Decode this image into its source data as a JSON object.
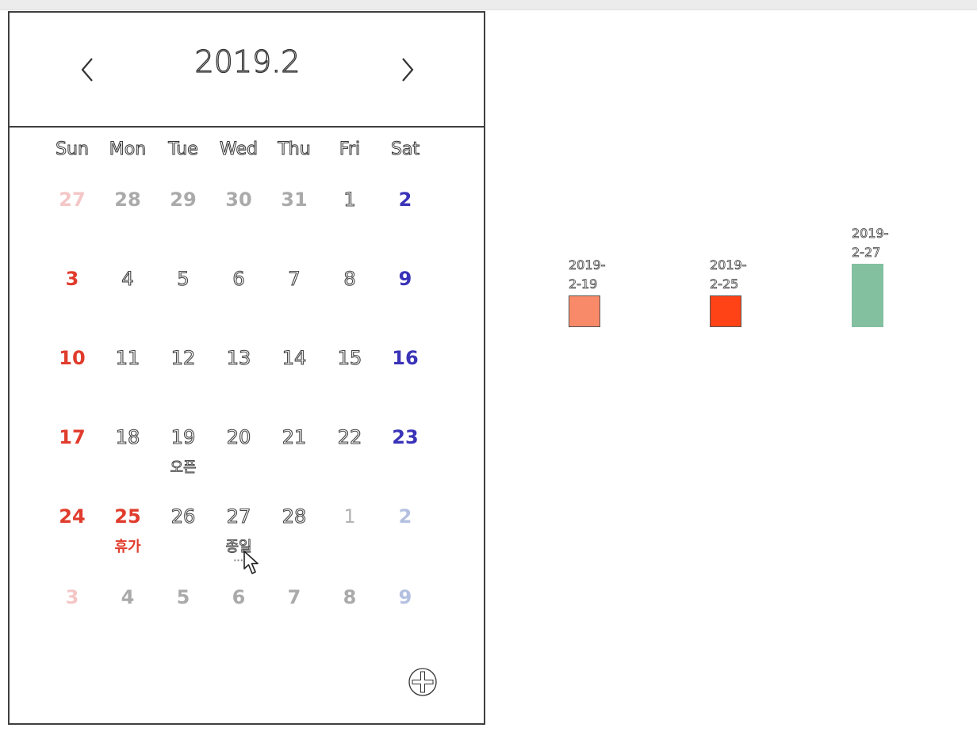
{
  "calendar": {
    "title": "2019.2",
    "prev_icon": "chevron-left-icon",
    "next_icon": "chevron-right-icon",
    "weekdays": [
      "Sun",
      "Mon",
      "Tue",
      "Wed",
      "Thu",
      "Fri",
      "Sat"
    ],
    "weeks": [
      [
        {
          "d": "27",
          "s": "d-pink"
        },
        {
          "d": "28",
          "s": "d-grey"
        },
        {
          "d": "29",
          "s": "d-grey"
        },
        {
          "d": "30",
          "s": "d-grey"
        },
        {
          "d": "31",
          "s": "d-grey"
        },
        {
          "d": "1",
          "s": "d-outline"
        },
        {
          "d": "2",
          "s": "d-blue"
        }
      ],
      [
        {
          "d": "3",
          "s": "d-red"
        },
        {
          "d": "4",
          "s": "d-outline"
        },
        {
          "d": "5",
          "s": "d-outline"
        },
        {
          "d": "6",
          "s": "d-outline"
        },
        {
          "d": "7",
          "s": "d-outline"
        },
        {
          "d": "8",
          "s": "d-outline"
        },
        {
          "d": "9",
          "s": "d-blue"
        }
      ],
      [
        {
          "d": "10",
          "s": "d-red"
        },
        {
          "d": "11",
          "s": "d-outline"
        },
        {
          "d": "12",
          "s": "d-outline"
        },
        {
          "d": "13",
          "s": "d-outline"
        },
        {
          "d": "14",
          "s": "d-outline"
        },
        {
          "d": "15",
          "s": "d-outline"
        },
        {
          "d": "16",
          "s": "d-blue"
        }
      ],
      [
        {
          "d": "17",
          "s": "d-red"
        },
        {
          "d": "18",
          "s": "d-outline"
        },
        {
          "d": "19",
          "s": "d-outline",
          "event": "오픈",
          "ev": "ev-outline"
        },
        {
          "d": "20",
          "s": "d-outline"
        },
        {
          "d": "21",
          "s": "d-outline"
        },
        {
          "d": "22",
          "s": "d-outline"
        },
        {
          "d": "23",
          "s": "d-blue"
        }
      ],
      [
        {
          "d": "24",
          "s": "d-red"
        },
        {
          "d": "25",
          "s": "d-red",
          "event": "휴가",
          "ev": "ev-red"
        },
        {
          "d": "26",
          "s": "d-outline"
        },
        {
          "d": "27",
          "s": "d-outline",
          "event": "종일",
          "ev": "ev-outline",
          "more": "..."
        },
        {
          "d": "28",
          "s": "d-outline"
        },
        {
          "d": "1",
          "s": "d-grey-light"
        },
        {
          "d": "2",
          "s": "d-lightblue"
        }
      ],
      [
        {
          "d": "3",
          "s": "d-pink"
        },
        {
          "d": "4",
          "s": "d-grey"
        },
        {
          "d": "5",
          "s": "d-grey"
        },
        {
          "d": "6",
          "s": "d-grey"
        },
        {
          "d": "7",
          "s": "d-grey"
        },
        {
          "d": "8",
          "s": "d-grey"
        },
        {
          "d": "9",
          "s": "d-lightblue"
        }
      ]
    ],
    "add_icon": "plus-circle-icon"
  },
  "chart_data": {
    "type": "bar",
    "categories": [
      "2019-2-19",
      "2019-2-25",
      "2019-2-27"
    ],
    "values": [
      1,
      1,
      2
    ],
    "colors": [
      "#f98a69",
      "#ff4317",
      "#82c0a0"
    ],
    "ylim": [
      0,
      2
    ]
  }
}
